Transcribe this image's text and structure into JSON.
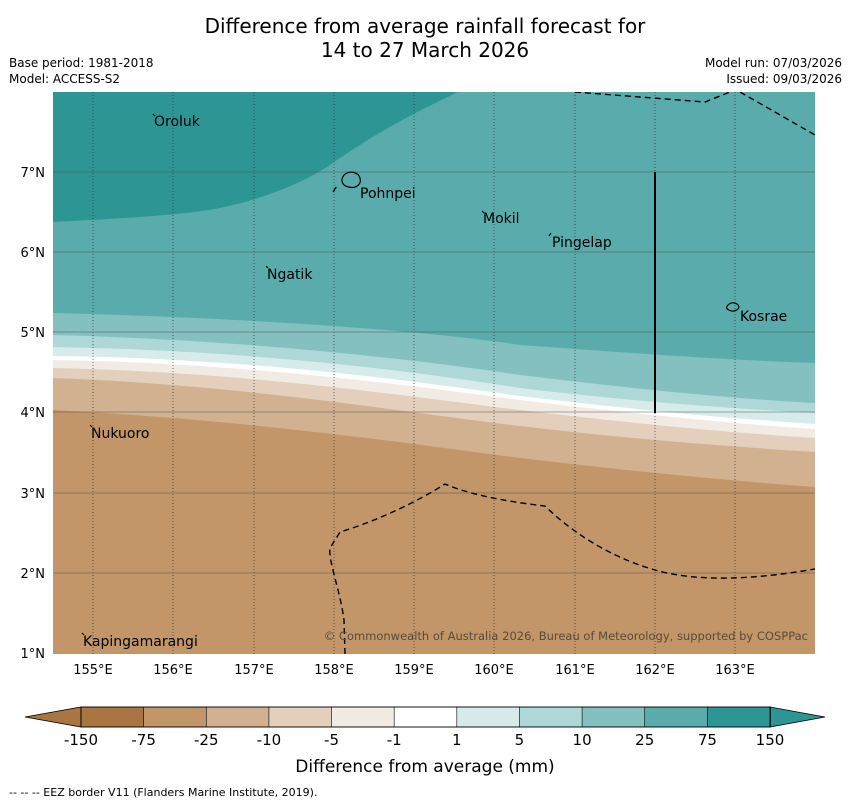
{
  "title": {
    "line1": "Difference from average rainfall forecast for",
    "line2": "14 to 27 March 2026"
  },
  "meta": {
    "base_period": "Base period: 1981-2018",
    "model": "Model: ACCESS-S2",
    "model_run": "Model run: 07/03/2026",
    "issued": "Issued: 09/03/2026"
  },
  "map": {
    "x_ticks": [
      "155°E",
      "156°E",
      "157°E",
      "158°E",
      "159°E",
      "160°E",
      "161°E",
      "162°E",
      "163°E"
    ],
    "y_ticks": [
      "7°N",
      "6°N",
      "5°N",
      "4°N",
      "3°N",
      "2°N",
      "1°N"
    ],
    "places": {
      "oroluk": "Oroluk",
      "pohnpei": "Pohnpei",
      "mokil": "Mokil",
      "pingelap": "Pingelap",
      "ngatik": "Ngatik",
      "kosrae": "Kosrae",
      "nukuoro": "Nukuoro",
      "kapingamarangi": "Kapingamarangi"
    },
    "copyright": "© Commonwealth of Australia 2026, Bureau of Meteorology, supported by COSPPac"
  },
  "colorbar": {
    "ticks": [
      "-150",
      "-75",
      "-25",
      "-10",
      "-5",
      "-1",
      "1",
      "5",
      "10",
      "25",
      "75",
      "150"
    ],
    "colors": [
      "#a97541",
      "#c29668",
      "#d2b191",
      "#e3cfbc",
      "#f2ebe4",
      "#ffffff",
      "#d7ebeb",
      "#aed7d7",
      "#84c0bf",
      "#5aabab",
      "#2e9595"
    ],
    "label": "Difference from average (mm)"
  },
  "legend": {
    "eez": "--  --  -- EEZ border V11 (Flanders Marine Institute, 2019)."
  }
}
